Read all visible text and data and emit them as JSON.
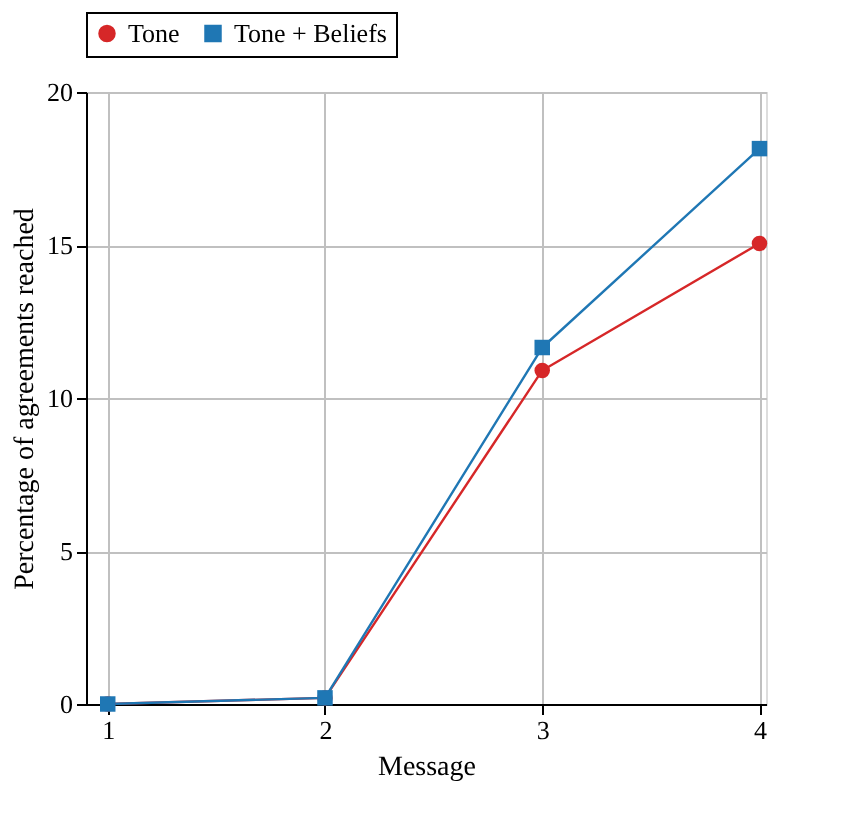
{
  "chart_data": {
    "type": "line",
    "xlabel": "Message",
    "ylabel": "Percentage of agreements reached",
    "x": [
      1,
      2,
      3,
      4
    ],
    "xlim": [
      0.9,
      4.03
    ],
    "xticks": [
      1,
      2,
      3,
      4
    ],
    "ylim": [
      0,
      20
    ],
    "yticks": [
      0,
      5,
      10,
      15,
      20
    ],
    "grid": true,
    "legend": "top",
    "series": [
      {
        "name": "Tone",
        "color": "#d62728",
        "marker": "circle",
        "values": [
          0,
          0.2,
          10.9,
          15.05
        ]
      },
      {
        "name": "Tone + Beliefs",
        "color": "#1f77b4",
        "marker": "square",
        "values": [
          0,
          0.2,
          11.65,
          18.15
        ]
      }
    ]
  }
}
